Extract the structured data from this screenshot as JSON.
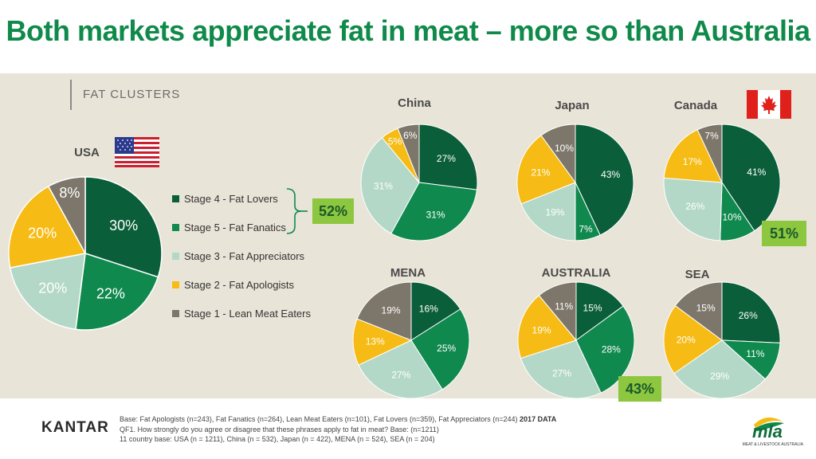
{
  "title": "Both markets appreciate fat in meat – more so than Australia",
  "section_label": "FAT CLUSTERS",
  "legend": [
    {
      "label": "Stage 4 - Fat Lovers",
      "color": "#0b5e3a"
    },
    {
      "label": "Stage 5 - Fat Fanatics",
      "color": "#10894e"
    },
    {
      "label": "Stage 3 - Fat Appreciators",
      "color": "#b3d8c8"
    },
    {
      "label": "Stage 2 - Fat Apologists",
      "color": "#f6bb14"
    },
    {
      "label": "Stage 1 - Lean Meat Eaters",
      "color": "#7d776b"
    }
  ],
  "callouts": {
    "usa": "52%",
    "canada": "51%",
    "australia": "43%"
  },
  "chart_data": [
    {
      "type": "pie",
      "id": "usa",
      "label": "USA",
      "slices": [
        {
          "category": "Stage 4 - Fat Lovers",
          "value": 30,
          "label": "30%"
        },
        {
          "category": "Stage 5 - Fat Fanatics",
          "value": 22,
          "label": "22%"
        },
        {
          "category": "Stage 3 - Fat Appreciators",
          "value": 20,
          "label": "20%"
        },
        {
          "category": "Stage 2 - Fat Apologists",
          "value": 20,
          "label": "20%"
        },
        {
          "category": "Stage 1 - Lean Meat Eaters",
          "value": 8,
          "label": "8%"
        }
      ]
    },
    {
      "type": "pie",
      "id": "china",
      "label": "China",
      "slices": [
        {
          "category": "Stage 4 - Fat Lovers",
          "value": 27,
          "label": "27%"
        },
        {
          "category": "Stage 5 - Fat Fanatics",
          "value": 31,
          "label": "31%"
        },
        {
          "category": "Stage 3 - Fat Appreciators",
          "value": 31,
          "label": "31%"
        },
        {
          "category": "Stage 2 - Fat Apologists",
          "value": 5,
          "label": "5%"
        },
        {
          "category": "Stage 1 - Lean Meat Eaters",
          "value": 6,
          "label": "6%"
        }
      ]
    },
    {
      "type": "pie",
      "id": "japan",
      "label": "Japan",
      "slices": [
        {
          "category": "Stage 4 - Fat Lovers",
          "value": 43,
          "label": "43%"
        },
        {
          "category": "Stage 5 - Fat Fanatics",
          "value": 7,
          "label": "7%"
        },
        {
          "category": "Stage 3 - Fat Appreciators",
          "value": 19,
          "label": "19%"
        },
        {
          "category": "Stage 2 - Fat Apologists",
          "value": 21,
          "label": "21%"
        },
        {
          "category": "Stage 1 - Lean Meat Eaters",
          "value": 10,
          "label": "10%"
        }
      ]
    },
    {
      "type": "pie",
      "id": "canada",
      "label": "Canada",
      "slices": [
        {
          "category": "Stage 4 - Fat Lovers",
          "value": 41,
          "label": "41%"
        },
        {
          "category": "Stage 5 - Fat Fanatics",
          "value": 10,
          "label": "10%"
        },
        {
          "category": "Stage 3 - Fat Appreciators",
          "value": 26,
          "label": "26%"
        },
        {
          "category": "Stage 2 - Fat Apologists",
          "value": 17,
          "label": "17%"
        },
        {
          "category": "Stage 1 - Lean Meat Eaters",
          "value": 7,
          "label": "7%"
        }
      ]
    },
    {
      "type": "pie",
      "id": "mena",
      "label": "MENA",
      "slices": [
        {
          "category": "Stage 4 - Fat Lovers",
          "value": 16,
          "label": "16%"
        },
        {
          "category": "Stage 5 - Fat Fanatics",
          "value": 25,
          "label": "25%"
        },
        {
          "category": "Stage 3 - Fat Appreciators",
          "value": 27,
          "label": "27%"
        },
        {
          "category": "Stage 2 - Fat Apologists",
          "value": 13,
          "label": "13%"
        },
        {
          "category": "Stage 1 - Lean Meat Eaters",
          "value": 19,
          "label": "19%"
        }
      ]
    },
    {
      "type": "pie",
      "id": "australia",
      "label": "AUSTRALIA",
      "slices": [
        {
          "category": "Stage 4 - Fat Lovers",
          "value": 15,
          "label": "15%"
        },
        {
          "category": "Stage 5 - Fat Fanatics",
          "value": 28,
          "label": "28%"
        },
        {
          "category": "Stage 3 - Fat Appreciators",
          "value": 27,
          "label": "27%"
        },
        {
          "category": "Stage 2 - Fat Apologists",
          "value": 19,
          "label": "19%"
        },
        {
          "category": "Stage 1 - Lean Meat Eaters",
          "value": 11,
          "label": "11%"
        }
      ]
    },
    {
      "type": "pie",
      "id": "sea",
      "label": "SEA",
      "slices": [
        {
          "category": "Stage 4 - Fat Lovers",
          "value": 26,
          "label": "26%"
        },
        {
          "category": "Stage 5 - Fat Fanatics",
          "value": 11,
          "label": "11%"
        },
        {
          "category": "Stage 3 - Fat Appreciators",
          "value": 29,
          "label": "29%"
        },
        {
          "category": "Stage 2 - Fat Apologists",
          "value": 20,
          "label": "20%"
        },
        {
          "category": "Stage 1 - Lean Meat Eaters",
          "value": 15,
          "label": "15%"
        }
      ]
    }
  ],
  "footer": {
    "brand": "KANTAR",
    "base_line": "Base: Fat Apologists (n=243), Fat Fanatics (n=264), Lean Meat Eaters (n=101), Fat Lovers (n=359), Fat Appreciators (n=244)",
    "base_year": "2017 DATA",
    "question": "QF1. How strongly do you agree or disagree that these phrases apply to fat in meat? Base: (n=1211)",
    "country_base": "11 country base: USA (n = 1211), China (n = 532), Japan (n = 422), MENA (n = 524), SEA (n = 204)",
    "logo_text": "mla",
    "logo_subtext": "MEAT & LIVESTOCK AUSTRALIA"
  }
}
